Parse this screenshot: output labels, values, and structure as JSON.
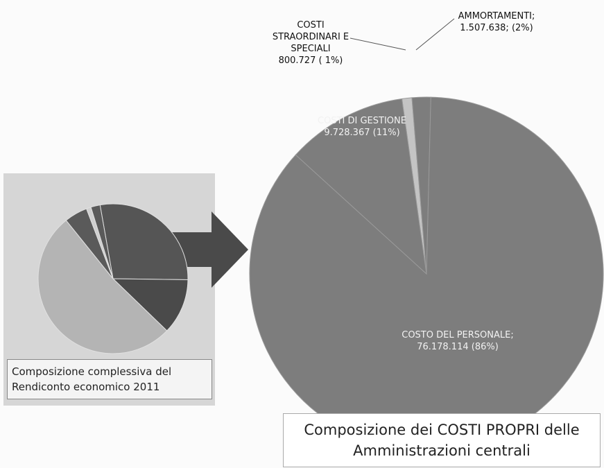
{
  "chart_data": [
    {
      "type": "pie",
      "title": "Composizione dei COSTI PROPRI delle Amministrazioni centrali",
      "categories": [
        "COSTI STRAORDINARI E SPECIALI",
        "AMMORTAMENTI;",
        "COSTO DEL PERSONALE;",
        "COSTI DI GESTIONE"
      ],
      "values": [
        800727,
        1507638,
        76178114,
        9728367
      ],
      "value_labels": [
        "800.727 ( 1%)",
        "1.507.638; (2%)",
        "76.178.114 (86%)",
        "9.728.367 (11%)"
      ],
      "colors": [
        "#c4c4c4",
        "#7d7d7d",
        "#7d7d7d",
        "#7d7d7d"
      ]
    },
    {
      "type": "pie",
      "title": "Composizione complessiva del Rendiconto economico 2011",
      "values": [
        28,
        12,
        52,
        5,
        1,
        2
      ],
      "colors": [
        "#555555",
        "#4a4a4a",
        "#b4b4b4",
        "#5a5a5a",
        "#cfcfcf",
        "#5a5a5a"
      ]
    }
  ]
}
